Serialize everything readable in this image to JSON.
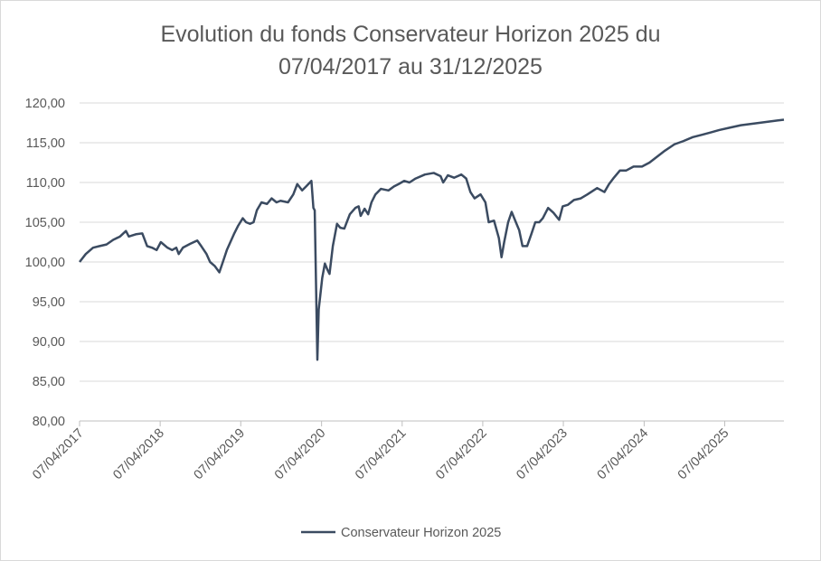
{
  "chart_data": {
    "type": "line",
    "title": "Evolution du fonds Conservateur Horizon 2025 du 07/04/2017 au 31/12/2025",
    "x": [
      "2017-04-07",
      "2017-05-05",
      "2017-06-07",
      "2017-07-07",
      "2017-08-07",
      "2017-09-07",
      "2017-10-07",
      "2017-11-03",
      "2017-11-16",
      "2017-12-20",
      "2018-01-16",
      "2018-02-07",
      "2018-03-01",
      "2018-03-22",
      "2018-04-10",
      "2018-05-10",
      "2018-05-31",
      "2018-06-19",
      "2018-06-30",
      "2018-07-19",
      "2018-08-22",
      "2018-09-22",
      "2018-10-10",
      "2018-11-03",
      "2018-11-19",
      "2018-12-10",
      "2018-12-31",
      "2019-01-16",
      "2019-02-03",
      "2019-02-19",
      "2019-03-07",
      "2019-03-25",
      "2019-04-16",
      "2019-05-01",
      "2019-05-19",
      "2019-06-04",
      "2019-06-19",
      "2019-07-10",
      "2019-08-04",
      "2019-08-25",
      "2019-09-16",
      "2019-10-04",
      "2019-11-07",
      "2019-12-01",
      "2019-12-19",
      "2020-01-10",
      "2020-01-28",
      "2020-02-21",
      "2020-03-01",
      "2020-03-07",
      "2020-03-19",
      "2020-03-25",
      "2020-04-10",
      "2020-04-22",
      "2020-05-04",
      "2020-05-13",
      "2020-05-28",
      "2020-06-16",
      "2020-07-01",
      "2020-07-19",
      "2020-08-13",
      "2020-09-07",
      "2020-09-22",
      "2020-10-01",
      "2020-10-19",
      "2020-11-04",
      "2020-11-19",
      "2020-12-07",
      "2021-01-01",
      "2021-02-04",
      "2021-03-01",
      "2021-03-22",
      "2021-04-16",
      "2021-05-10",
      "2021-06-07",
      "2021-07-19",
      "2021-08-28",
      "2021-09-28",
      "2021-10-10",
      "2021-10-31",
      "2021-11-28",
      "2021-12-31",
      "2022-01-22",
      "2022-02-10",
      "2022-03-01",
      "2022-03-28",
      "2022-04-19",
      "2022-05-04",
      "2022-05-28",
      "2022-06-19",
      "2022-07-01",
      "2022-07-13",
      "2022-07-31",
      "2022-08-16",
      "2022-09-04",
      "2022-09-19",
      "2022-10-04",
      "2022-10-25",
      "2022-11-13",
      "2022-12-01",
      "2022-12-19",
      "2023-01-04",
      "2023-01-28",
      "2023-02-21",
      "2023-03-19",
      "2023-04-04",
      "2023-04-28",
      "2023-05-25",
      "2023-06-25",
      "2023-07-25",
      "2023-09-07",
      "2023-10-10",
      "2023-10-31",
      "2023-11-19",
      "2023-12-19",
      "2024-01-16",
      "2024-02-19",
      "2024-03-28",
      "2024-05-01",
      "2024-06-07",
      "2024-07-10",
      "2024-08-22",
      "2024-10-01",
      "2024-11-13",
      "2024-12-25",
      "2025-02-03",
      "2025-03-13",
      "2025-05-01",
      "2025-06-19",
      "2025-09-10",
      "2025-12-01",
      "2025-12-31"
    ],
    "series": [
      {
        "name": "Conservateur Horizon 2025",
        "color": "#3b4b61",
        "values": [
          100.0,
          101.0,
          101.8,
          102.0,
          102.2,
          102.8,
          103.2,
          103.9,
          103.2,
          103.5,
          103.6,
          102.0,
          101.8,
          101.5,
          102.5,
          101.8,
          101.5,
          101.8,
          101.0,
          101.8,
          102.3,
          102.7,
          102.0,
          101.0,
          100.0,
          99.5,
          98.7,
          100.0,
          101.5,
          102.5,
          103.5,
          104.5,
          105.5,
          105.0,
          104.8,
          105.0,
          106.5,
          107.5,
          107.3,
          108.0,
          107.5,
          107.7,
          107.5,
          108.5,
          109.8,
          109.0,
          109.5,
          110.2,
          106.8,
          106.5,
          87.7,
          94.0,
          98.0,
          99.8,
          99.0,
          98.5,
          102.0,
          104.8,
          104.3,
          104.2,
          106.0,
          106.8,
          107.0,
          105.8,
          106.7,
          106.0,
          107.5,
          108.5,
          109.2,
          109.0,
          109.5,
          109.8,
          110.2,
          110.0,
          110.5,
          111.0,
          111.2,
          110.8,
          110.0,
          110.9,
          110.6,
          111.0,
          110.5,
          108.8,
          108.0,
          108.5,
          107.5,
          105.0,
          105.2,
          103.0,
          100.6,
          102.5,
          105.0,
          106.3,
          105.0,
          104.0,
          102.0,
          102.0,
          103.5,
          105.0,
          105.0,
          105.5,
          106.8,
          106.2,
          105.3,
          107.0,
          107.2,
          107.8,
          108.0,
          108.5,
          109.3,
          108.8,
          109.8,
          110.5,
          111.5,
          111.5,
          112.0,
          112.0,
          112.5,
          113.3,
          114.0,
          114.8,
          115.2,
          115.7,
          116.0,
          116.3,
          116.6,
          116.9,
          117.2,
          117.5,
          117.8,
          117.9
        ]
      }
    ],
    "xlim": [
      "2017-04-07",
      "2025-12-31"
    ],
    "xticks": [
      {
        "value": "2017-04-07",
        "label": "07/04/2017"
      },
      {
        "value": "2018-04-07",
        "label": "07/04/2018"
      },
      {
        "value": "2019-04-07",
        "label": "07/04/2019"
      },
      {
        "value": "2020-04-07",
        "label": "07/04/2020"
      },
      {
        "value": "2021-04-07",
        "label": "07/04/2021"
      },
      {
        "value": "2022-04-07",
        "label": "07/04/2022"
      },
      {
        "value": "2023-04-07",
        "label": "07/04/2023"
      },
      {
        "value": "2024-04-07",
        "label": "07/04/2024"
      },
      {
        "value": "2025-04-07",
        "label": "07/04/2025"
      }
    ],
    "ylim": [
      80,
      120
    ],
    "yticks": [
      {
        "value": 80,
        "label": "80,00"
      },
      {
        "value": 85,
        "label": "85,00"
      },
      {
        "value": 90,
        "label": "90,00"
      },
      {
        "value": 95,
        "label": "95,00"
      },
      {
        "value": 100,
        "label": "100,00"
      },
      {
        "value": 105,
        "label": "105,00"
      },
      {
        "value": 110,
        "label": "110,00"
      },
      {
        "value": 115,
        "label": "115,00"
      },
      {
        "value": 120,
        "label": "120,00"
      }
    ],
    "grid": true,
    "legend": "bottom"
  }
}
